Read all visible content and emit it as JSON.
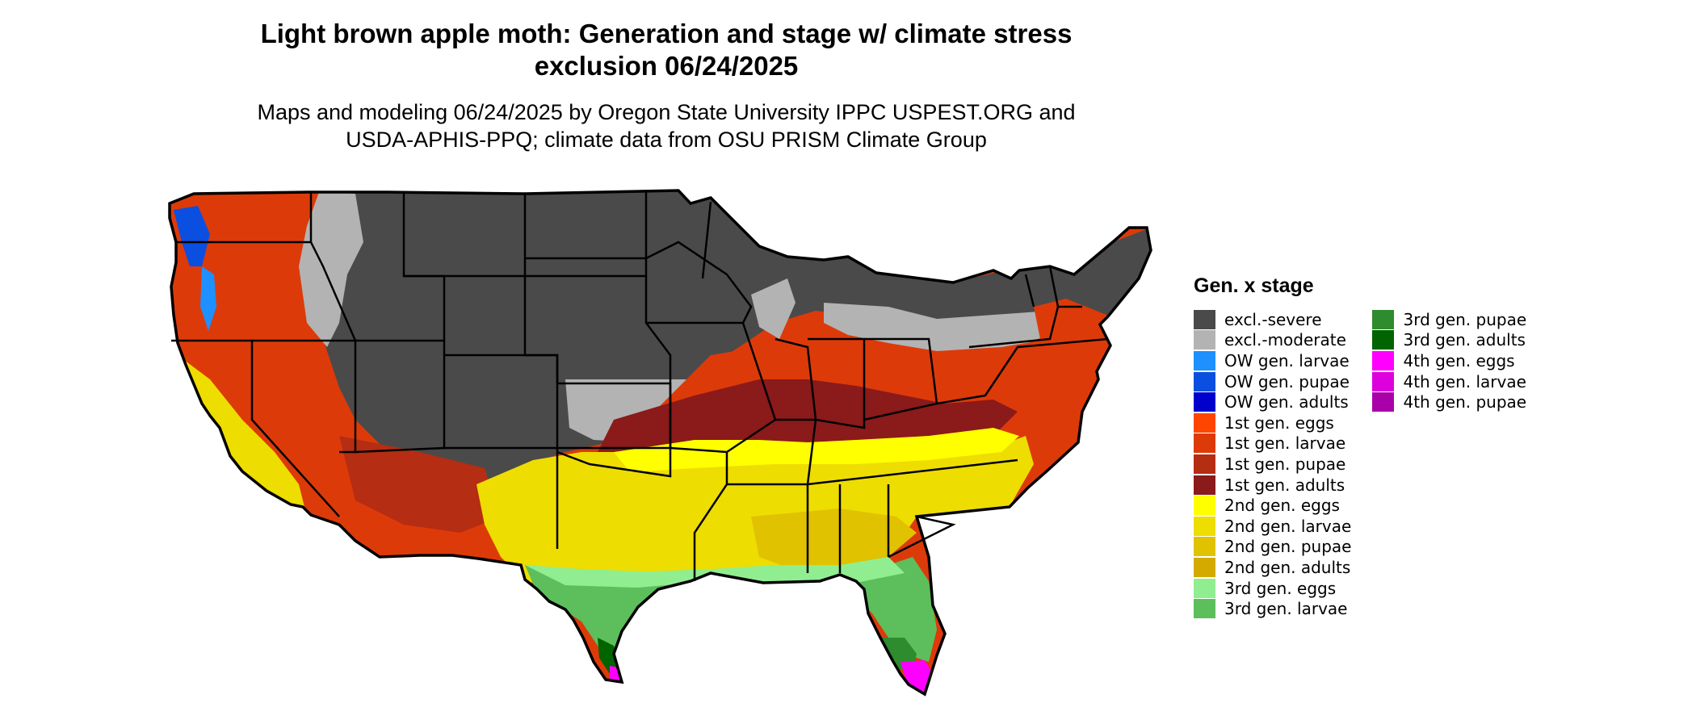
{
  "title_line1": "Light brown apple moth: Generation and stage w/ climate stress",
  "title_line2": "exclusion 06/24/2025",
  "subtitle_line1": "Maps and modeling 06/24/2025 by Oregon State University IPPC USPEST.ORG and",
  "subtitle_line2": "USDA-APHIS-PPQ; climate data from OSU PRISM Climate Group",
  "legend": {
    "title": "Gen. x stage",
    "col1": [
      {
        "label": "excl.-severe",
        "color": "#4a4a4a"
      },
      {
        "label": "excl.-moderate",
        "color": "#b3b3b3"
      },
      {
        "label": "OW gen. larvae",
        "color": "#1e90ff"
      },
      {
        "label": "OW gen. pupae",
        "color": "#0a4fe0"
      },
      {
        "label": "OW gen. adults",
        "color": "#0000cd"
      },
      {
        "label": "1st gen. eggs",
        "color": "#ff4500"
      },
      {
        "label": "1st gen. larvae",
        "color": "#dd3a0a"
      },
      {
        "label": "1st gen. pupae",
        "color": "#b52d12"
      },
      {
        "label": "1st gen. adults",
        "color": "#8b1a1a"
      },
      {
        "label": "2nd gen. eggs",
        "color": "#ffff00"
      },
      {
        "label": "2nd gen. larvae",
        "color": "#eedd00"
      },
      {
        "label": "2nd gen. pupae",
        "color": "#e0c200"
      },
      {
        "label": "2nd gen. adults",
        "color": "#d4aa00"
      },
      {
        "label": "3rd gen. eggs",
        "color": "#90ee90"
      },
      {
        "label": "3rd gen. larvae",
        "color": "#5cbf5c"
      }
    ],
    "col2": [
      {
        "label": "3rd gen. pupae",
        "color": "#2e8b2e"
      },
      {
        "label": "3rd gen. adults",
        "color": "#006400"
      },
      {
        "label": "4th gen. eggs",
        "color": "#ff00ff"
      },
      {
        "label": "4th gen. larvae",
        "color": "#dd00dd"
      },
      {
        "label": "4th gen. pupae",
        "color": "#aa00aa"
      }
    ]
  }
}
